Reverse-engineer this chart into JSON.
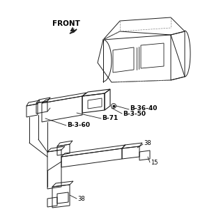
{
  "background_color": "#ffffff",
  "line_color": "#1a1a1a",
  "label_color": "#000000",
  "labels": {
    "front": "FRONT",
    "b3640": "B-36-40",
    "b350": "B-3-50",
    "b71": "B-71",
    "b360": "B-3-60",
    "num38a": "38",
    "num38b": "38",
    "num15": "15"
  },
  "figsize": [
    2.84,
    3.2
  ],
  "dpi": 100
}
